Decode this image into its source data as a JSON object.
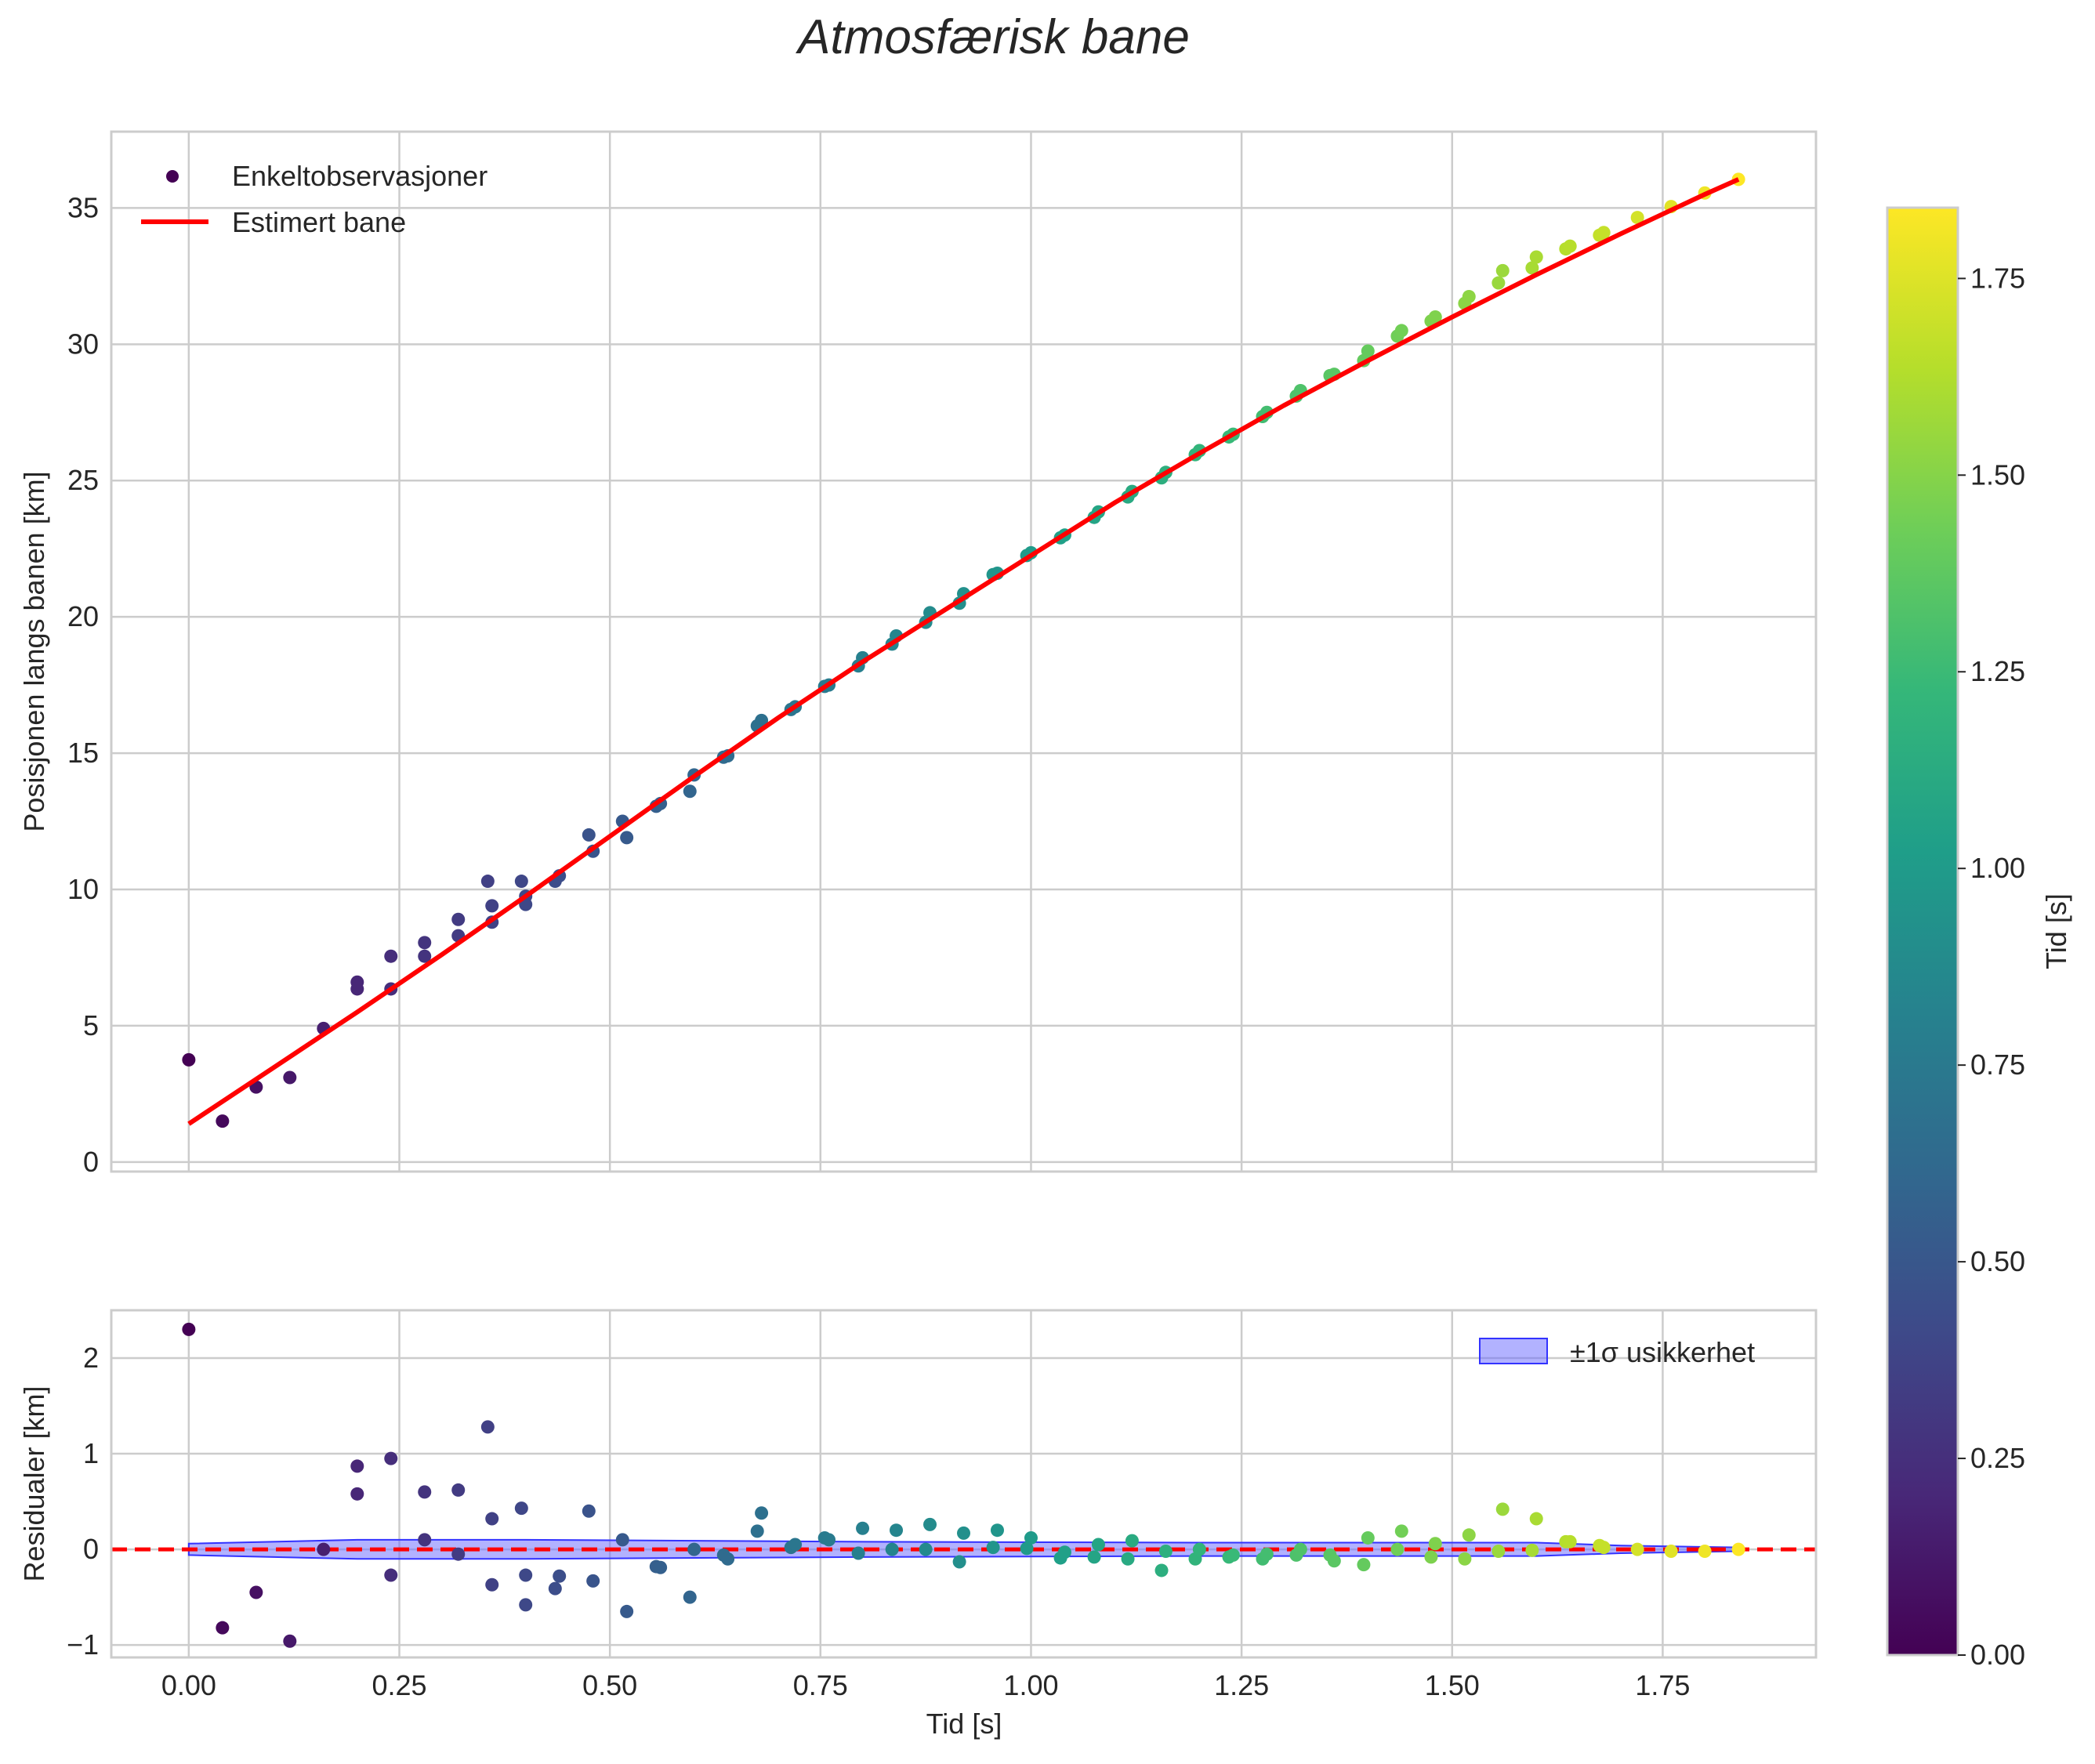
{
  "figure": {
    "title": "Atmosfærisk bane"
  },
  "chart_data": [
    {
      "type": "scatter",
      "panel": "top",
      "title": "",
      "xlabel": "",
      "ylabel": "Posisjonen langs banen [km]",
      "xlim": [
        -0.092,
        1.932
      ],
      "ylim": [
        -0.35,
        37.8
      ],
      "xticks": [
        0.0,
        0.25,
        0.5,
        0.75,
        1.0,
        1.25,
        1.5,
        1.75
      ],
      "yticks": [
        0,
        5,
        10,
        15,
        20,
        25,
        30,
        35
      ],
      "ytick_labels": [
        "0",
        "5",
        "10",
        "15",
        "20",
        "25",
        "30",
        "35"
      ],
      "grid": true,
      "legend_position": "top-left",
      "legend": [
        {
          "label": "Enkeltobservasjoner",
          "kind": "marker"
        },
        {
          "label": "Estimert bane",
          "kind": "line"
        }
      ],
      "series": [
        {
          "name": "Enkeltobservasjoner",
          "kind": "scatter",
          "color_by": "x",
          "x": [
            0.0,
            0.04,
            0.08,
            0.12,
            0.16,
            0.2,
            0.2,
            0.24,
            0.24,
            0.28,
            0.28,
            0.32,
            0.32,
            0.355,
            0.36,
            0.36,
            0.395,
            0.4,
            0.4,
            0.435,
            0.44,
            0.475,
            0.48,
            0.515,
            0.52,
            0.555,
            0.56,
            0.595,
            0.6,
            0.635,
            0.64,
            0.675,
            0.68,
            0.715,
            0.72,
            0.755,
            0.76,
            0.795,
            0.8,
            0.835,
            0.84,
            0.875,
            0.88,
            0.915,
            0.92,
            0.955,
            0.96,
            0.995,
            1.0,
            1.035,
            1.04,
            1.075,
            1.08,
            1.115,
            1.12,
            1.155,
            1.16,
            1.195,
            1.2,
            1.235,
            1.24,
            1.275,
            1.28,
            1.315,
            1.32,
            1.355,
            1.36,
            1.395,
            1.4,
            1.435,
            1.44,
            1.475,
            1.48,
            1.515,
            1.52,
            1.555,
            1.56,
            1.595,
            1.6,
            1.635,
            1.64,
            1.675,
            1.68,
            1.72,
            1.76,
            1.8,
            1.84
          ],
          "y": [
            3.75,
            1.5,
            2.75,
            3.1,
            4.9,
            6.35,
            6.6,
            7.55,
            6.35,
            8.05,
            7.55,
            8.9,
            8.3,
            10.3,
            9.4,
            8.8,
            10.3,
            9.75,
            9.45,
            10.3,
            10.5,
            12.0,
            11.4,
            12.5,
            11.9,
            13.05,
            13.15,
            13.6,
            14.2,
            14.85,
            14.9,
            16.0,
            16.2,
            16.6,
            16.7,
            17.45,
            17.5,
            18.2,
            18.5,
            19.0,
            19.3,
            19.8,
            20.15,
            20.5,
            20.85,
            21.55,
            21.6,
            22.25,
            22.35,
            22.9,
            23.0,
            23.65,
            23.85,
            24.4,
            24.6,
            25.1,
            25.3,
            25.95,
            26.1,
            26.6,
            26.7,
            27.35,
            27.5,
            28.1,
            28.3,
            28.85,
            28.9,
            29.4,
            29.75,
            30.3,
            30.5,
            30.85,
            31.0,
            31.5,
            31.75,
            32.25,
            32.7,
            32.8,
            33.2,
            33.5,
            33.6,
            34.0,
            34.1,
            34.65,
            35.05,
            35.55,
            36.05
          ]
        },
        {
          "name": "Estimert bane",
          "kind": "line",
          "color": "#ff0000",
          "x": [
            0.0,
            0.1,
            0.2,
            0.3,
            0.4,
            0.5,
            0.6,
            0.7,
            0.8,
            0.9,
            1.0,
            1.1,
            1.2,
            1.3,
            1.4,
            1.5,
            1.6,
            1.7,
            1.8,
            1.84
          ],
          "y": [
            1.4,
            3.45,
            5.5,
            7.6,
            9.75,
            11.95,
            14.15,
            16.3,
            18.35,
            20.3,
            22.25,
            24.2,
            26.0,
            27.75,
            29.4,
            31.0,
            32.55,
            34.05,
            35.5,
            36.05
          ]
        }
      ]
    },
    {
      "type": "scatter",
      "panel": "bottom",
      "title": "",
      "xlabel": "Tid [s]",
      "ylabel": "Residualer [km]",
      "xlim": [
        -0.092,
        1.932
      ],
      "ylim": [
        -1.13,
        2.5
      ],
      "xticks": [
        0.0,
        0.25,
        0.5,
        0.75,
        1.0,
        1.25,
        1.5,
        1.75
      ],
      "xtick_labels": [
        "0.00",
        "0.25",
        "0.50",
        "0.75",
        "1.00",
        "1.25",
        "1.50",
        "1.75"
      ],
      "yticks": [
        -1,
        0,
        1,
        2
      ],
      "ytick_labels": [
        "−1",
        "0",
        "1",
        "2"
      ],
      "grid": true,
      "legend_position": "top-right",
      "legend": [
        {
          "label": "±1σ usikkerhet",
          "kind": "band"
        }
      ],
      "zero_line": {
        "y": 0,
        "color": "#ff0000",
        "style": "dashed"
      },
      "band": {
        "name": "±1σ usikkerhet",
        "color": "#6666ff",
        "x": [
          0.0,
          0.2,
          0.4,
          0.8,
          1.2,
          1.6,
          1.7,
          1.84
        ],
        "upper": [
          0.06,
          0.1,
          0.1,
          0.08,
          0.07,
          0.07,
          0.04,
          0.02
        ],
        "lower": [
          -0.06,
          -0.1,
          -0.1,
          -0.08,
          -0.07,
          -0.07,
          -0.04,
          -0.02
        ]
      },
      "series": [
        {
          "name": "Residualer",
          "kind": "scatter",
          "color_by": "x",
          "x": [
            0.0,
            0.04,
            0.08,
            0.12,
            0.16,
            0.2,
            0.2,
            0.24,
            0.24,
            0.28,
            0.28,
            0.32,
            0.32,
            0.355,
            0.36,
            0.36,
            0.395,
            0.4,
            0.4,
            0.435,
            0.44,
            0.475,
            0.48,
            0.515,
            0.52,
            0.555,
            0.56,
            0.595,
            0.6,
            0.635,
            0.64,
            0.675,
            0.68,
            0.715,
            0.72,
            0.755,
            0.76,
            0.795,
            0.8,
            0.835,
            0.84,
            0.875,
            0.88,
            0.915,
            0.92,
            0.955,
            0.96,
            0.995,
            1.0,
            1.035,
            1.04,
            1.075,
            1.08,
            1.115,
            1.12,
            1.155,
            1.16,
            1.195,
            1.2,
            1.235,
            1.24,
            1.275,
            1.28,
            1.315,
            1.32,
            1.355,
            1.36,
            1.395,
            1.4,
            1.435,
            1.44,
            1.475,
            1.48,
            1.515,
            1.52,
            1.555,
            1.56,
            1.595,
            1.6,
            1.635,
            1.64,
            1.675,
            1.68,
            1.72,
            1.76,
            1.8,
            1.84
          ],
          "y": [
            2.3,
            -0.82,
            -0.45,
            -0.96,
            0.0,
            0.58,
            0.87,
            -0.27,
            0.95,
            0.6,
            0.1,
            0.62,
            -0.05,
            1.28,
            0.32,
            -0.37,
            0.43,
            -0.58,
            -0.27,
            -0.41,
            -0.28,
            0.4,
            -0.33,
            0.1,
            -0.65,
            -0.18,
            -0.19,
            -0.5,
            0.0,
            -0.06,
            -0.1,
            0.19,
            0.38,
            0.02,
            0.05,
            0.12,
            0.1,
            -0.04,
            0.22,
            0.0,
            0.2,
            0.0,
            0.26,
            -0.13,
            0.17,
            0.02,
            0.2,
            0.01,
            0.12,
            -0.09,
            -0.03,
            -0.08,
            0.05,
            -0.1,
            0.09,
            -0.22,
            -0.02,
            -0.1,
            0.0,
            -0.08,
            -0.06,
            -0.1,
            -0.05,
            -0.06,
            0.0,
            -0.06,
            -0.12,
            -0.16,
            0.12,
            0.0,
            0.19,
            -0.08,
            0.06,
            -0.1,
            0.15,
            -0.02,
            0.42,
            -0.01,
            0.32,
            0.08,
            0.08,
            0.04,
            0.02,
            0.0,
            -0.02,
            -0.02,
            0.0
          ]
        }
      ]
    }
  ],
  "colorbar": {
    "label": "Tid [s]",
    "colormap": "viridis",
    "range": [
      0.0,
      1.84
    ],
    "ticks": [
      0.0,
      0.25,
      0.5,
      0.75,
      1.0,
      1.25,
      1.5,
      1.75
    ],
    "tick_labels": [
      "0.00",
      "0.25",
      "0.50",
      "0.75",
      "1.00",
      "1.25",
      "1.50",
      "1.75"
    ],
    "stops": [
      "#440154",
      "#482878",
      "#3e4989",
      "#31688e",
      "#26828e",
      "#1f9e89",
      "#35b779",
      "#6ece58",
      "#b5de2b",
      "#fde725"
    ]
  }
}
